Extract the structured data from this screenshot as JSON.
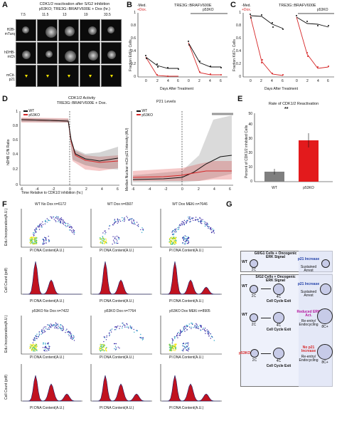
{
  "panelA": {
    "letter": "A",
    "title_line1": "CDK1/2 reactivation after S/G2 inhibition",
    "title_line2": "p53KO; TRE3G::BRAFV600E + Dox (hr.)",
    "timepoints": [
      "7.5",
      "11.5",
      "13",
      "19",
      "33.5"
    ],
    "row_labels": [
      "H2B-mTurq",
      "hDHB-mCh",
      "mCit-p21"
    ]
  },
  "panelB": {
    "letter": "B",
    "title": "TRE3G::BRAFV600E",
    "legend": [
      "-Med.",
      "+Dox."
    ],
    "ylabel": "Fraction EdU+ Cells",
    "xlabel": "Days After Treatment",
    "annot": "p53KO"
  },
  "panelC": {
    "letter": "C",
    "title": "TRE3G::BRAFV600E",
    "legend": [
      "-Med.",
      "+Dox."
    ],
    "ylabel": "Fraction Ki67+ Cells",
    "xlabel": "Days After Treatment",
    "annot": "p53KO"
  },
  "panelD": {
    "letter": "D",
    "left_title_line1": "CDK1/2 Activity",
    "left_title_line2": "TRE3G::BRAFV600E + Dox.",
    "right_title": "P21 Levels",
    "legend": [
      "WT",
      "p53KO"
    ],
    "left_ylabel": "hDHB C/N Ratio",
    "right_ylabel": "Median Nuclear mCit-p21 Intensity (AU)",
    "xlabel": "Time Relative to CDK1/2 inhibition (hr.)",
    "colors": {
      "wt": "#111111",
      "ko": "#d62728"
    }
  },
  "panelE": {
    "letter": "E",
    "title": "Rate of CDK1/2 Reactivation",
    "ylabel": "Percent of CDK1/2 inhibited Cells",
    "significance": "**"
  },
  "panelF": {
    "letter": "F",
    "scatter_titles": [
      "WT No Dox n=6172",
      "WT Dox n=6507",
      "WT Dox MEKi n=7646",
      "p53KO No Dox n=7422",
      "p53KO Dox n=7764",
      "p53KO Dox MEKi n=8905"
    ],
    "scatter_ylabel": "Edu Incorporation(A.U.)",
    "hist_ylabel": "Cell Count (pdf)",
    "xlabel": "PI DNA Content(A.U.)"
  },
  "panelG": {
    "letter": "G",
    "box1_title": "G0/G1 Cells + Oncogenic ERK Signal",
    "box2_title": "S/G2 Cells + Oncogenic ERK Signal",
    "row1": {
      "genotype": "WT",
      "cell": "2C",
      "outcome": "p21 Increase",
      "result": "Sustained Arrest"
    },
    "row2": {
      "genotype": "WT",
      "cells": [
        "2C",
        "4C"
      ],
      "exit": "Cell Cycle Exit",
      "outcome": "p21 Increase",
      "result": "Sustained Arrest"
    },
    "row3": {
      "genotype": "WT",
      "cells": [
        "2C",
        "4C",
        "8C+"
      ],
      "exit": "Cell Cycle Exit",
      "outcome": "Reduced ERK Act.",
      "result": "Re-entry/ Endocycling"
    },
    "row4": {
      "genotype": "p53KO",
      "cells": [
        "2C",
        "4C",
        "8C+"
      ],
      "exit": "Cell Cycle Exit",
      "outcome": "No p21 Increase",
      "result": "Re-entry/ Endocycling"
    }
  }
}
